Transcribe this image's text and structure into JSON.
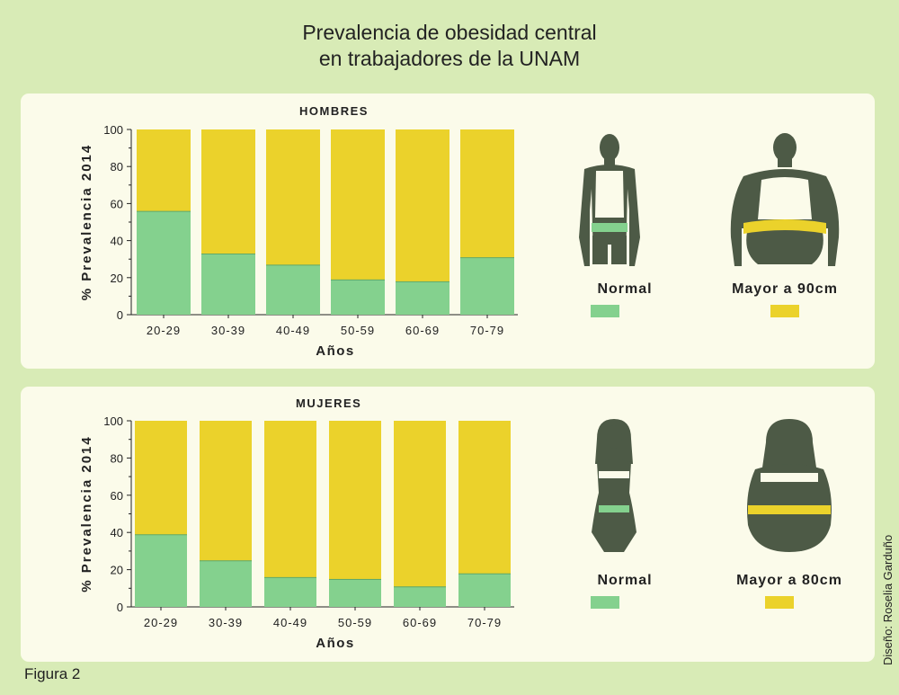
{
  "title_line1": "Prevalencia de obesidad central",
  "title_line2": "en trabajadores de la UNAM",
  "figure_label": "Figura 2",
  "credit": "Diseño: Roselia Garduño",
  "colors": {
    "normal": "#84d18e",
    "mayor": "#ebd22b",
    "silhouette": "#4d5a46"
  },
  "men": {
    "panel_title": "HOMBRES",
    "legend_normal": "Normal",
    "legend_mayor": "Mayor a 90cm"
  },
  "women": {
    "panel_title": "MUJERES",
    "legend_normal": "Normal",
    "legend_mayor": "Mayor a 80cm"
  },
  "chart_data": [
    {
      "type": "bar",
      "stacked": true,
      "title": "HOMBRES",
      "categories": [
        "20-29",
        "30-39",
        "40-49",
        "50-59",
        "60-69",
        "70-79"
      ],
      "series": [
        {
          "name": "Normal",
          "values": [
            56,
            33,
            27,
            19,
            18,
            31
          ]
        },
        {
          "name": "Mayor a 90cm",
          "values": [
            44,
            67,
            73,
            81,
            82,
            69
          ]
        }
      ],
      "xlabel": "Años",
      "ylabel": "% Prevalencia 2014",
      "ylim": [
        0,
        100
      ],
      "yticks": [
        0,
        20,
        40,
        60,
        80,
        100
      ]
    },
    {
      "type": "bar",
      "stacked": true,
      "title": "MUJERES",
      "categories": [
        "20-29",
        "30-39",
        "40-49",
        "50-59",
        "60-69",
        "70-79"
      ],
      "series": [
        {
          "name": "Normal",
          "values": [
            39,
            25,
            16,
            15,
            11,
            18
          ]
        },
        {
          "name": "Mayor a 80cm",
          "values": [
            61,
            75,
            84,
            85,
            89,
            82
          ]
        }
      ],
      "xlabel": "Años",
      "ylabel": "% Prevalencia 2014",
      "ylim": [
        0,
        100
      ],
      "yticks": [
        0,
        20,
        40,
        60,
        80,
        100
      ]
    }
  ]
}
